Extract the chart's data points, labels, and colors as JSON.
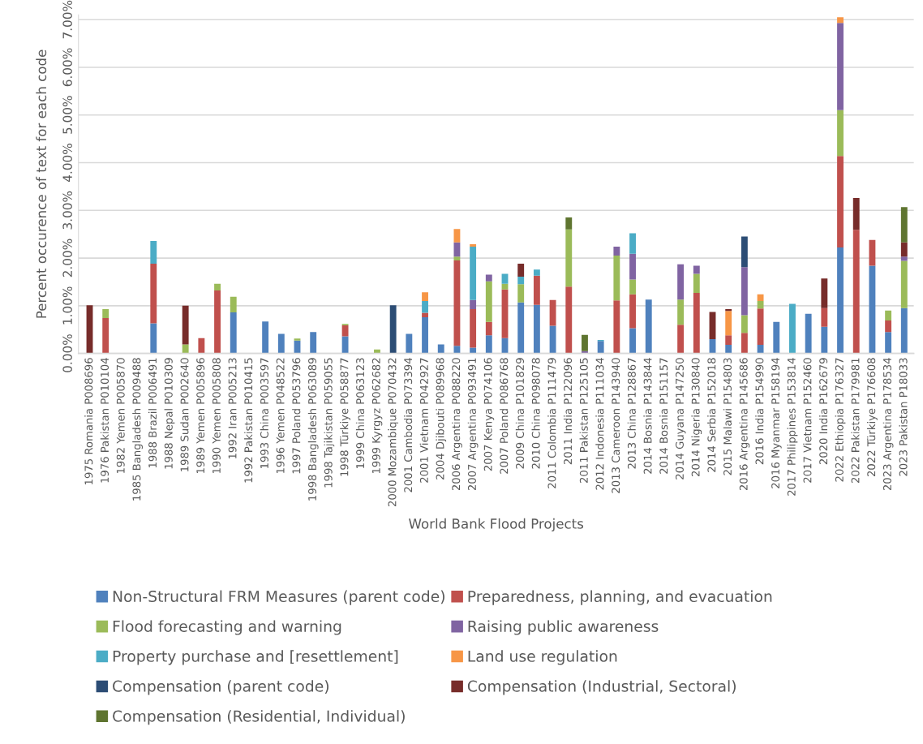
{
  "chart_data": {
    "type": "bar",
    "stacked": true,
    "xlabel": "World Bank Flood Projects",
    "ylabel": "Percent occurence of text for each code",
    "legend": "bottom",
    "grid": "y",
    "ylim": [
      0,
      7.1
    ],
    "yticks": [
      {
        "value": 0,
        "label": "0.00%"
      },
      {
        "value": 1,
        "label": "1.00%"
      },
      {
        "value": 2,
        "label": "2.00%"
      },
      {
        "value": 3,
        "label": "3.00%"
      },
      {
        "value": 4,
        "label": "4.00%"
      },
      {
        "value": 5,
        "label": "5.00%"
      },
      {
        "value": 6,
        "label": "6.00%"
      },
      {
        "value": 7,
        "label": "7.00%"
      }
    ],
    "categories": [
      "1975 Romania P008696",
      "1976 Pakistan P010104",
      "1982 Yemen P005870",
      "1985 Bangladesh P009488",
      "1988 Brazil P006491",
      "1988 Nepal P010309",
      "1989 Sudan P002640",
      "1989 Yemen P005896",
      "1990 Yemen P005808",
      "1992 Iran P005213",
      "1992 Pakistan P010415",
      "1993 China P003597",
      "1996 Yemen P048522",
      "1997 Poland P053796",
      "1998 Bangladesh P063089",
      "1998 Tajikistan P059055",
      "1998 Türkiye P058877",
      "1999 China P063123",
      "1999 Kyrgyz P062682",
      "2000 Mozambique P070432",
      "2001 Cambodia P073394",
      "2001 Vietnam P042927",
      "2004 Djibouti P089968",
      "2006 Argentina P088220",
      "2007 Argentina P093491",
      "2007 Kenya P074106",
      "2007 Poland P086768",
      "2009 China P101829",
      "2010 China P098078",
      "2011 Colombia P111479",
      "2011 India P122096",
      "2011 Pakistan P125105",
      "2012 Indonesia P111034",
      "2013 Cameroon P143940",
      "2013 China P128867",
      "2014 Bosnia P143844",
      "2014 Bosnia P151157",
      "2014 Guyana P147250",
      "2014 Nigeria P130840",
      "2014 Serbia P152018",
      "2015 Malawi P154803",
      "2016 Argentina P145686",
      "2016 India P154990",
      "2016 Myanmar P158194",
      "2017 Philippines P153814",
      "2017 Vietnam P152460",
      "2020 India P162679",
      "2022 Ethiopia P176327",
      "2022 Pakistan P179981",
      "2022 Türkiye P176608",
      "2023 Argentina P178534",
      "2023 Pakistan P18033"
    ],
    "series": [
      {
        "name": "Non-Structural FRM Measures (parent code)",
        "color": "#4f81bd",
        "values": [
          0,
          0,
          0,
          0,
          0.63,
          0,
          0,
          0,
          0,
          0.86,
          0,
          0.67,
          0.41,
          0.27,
          0.45,
          0,
          0.36,
          0,
          0,
          0,
          0.41,
          0.76,
          0.19,
          0.16,
          0.12,
          0.38,
          0.32,
          1.07,
          1.02,
          0.58,
          0,
          0,
          0.26,
          0,
          0.53,
          1.13,
          0,
          0,
          0,
          0.3,
          0.18,
          0,
          0.18,
          0.66,
          0,
          0.83,
          0.56,
          2.22,
          0,
          1.84,
          0.45,
          0.95
        ]
      },
      {
        "name": "Preparedness, planning, and evacuation",
        "color": "#c0504d",
        "values": [
          0,
          0.74,
          0,
          0,
          1.25,
          0,
          0,
          0.32,
          1.32,
          0,
          0,
          0,
          0,
          0,
          0,
          0,
          0.23,
          0,
          0,
          0,
          0,
          0.09,
          0,
          1.79,
          0.81,
          0.28,
          1.02,
          0,
          0.61,
          0.54,
          1.4,
          0,
          0,
          1.11,
          0.71,
          0,
          0,
          0.6,
          1.27,
          0,
          0.2,
          0.43,
          0.76,
          0,
          0,
          0,
          0.39,
          1.92,
          2.59,
          0.54,
          0.24,
          0
        ]
      },
      {
        "name": "Flood forecasting and warning",
        "color": "#9bbb59",
        "values": [
          0,
          0.19,
          0,
          0,
          0,
          0,
          0.19,
          0,
          0.14,
          0.33,
          0,
          0,
          0,
          0.04,
          0,
          0,
          0.03,
          0,
          0.08,
          0,
          0,
          0,
          0,
          0.08,
          0,
          0.85,
          0.12,
          0.38,
          0,
          0,
          1.2,
          0,
          0,
          0.94,
          0.31,
          0,
          0,
          0.53,
          0.4,
          0,
          0,
          0.37,
          0.16,
          0,
          0,
          0,
          0,
          0.96,
          0,
          0,
          0.21,
          0.99
        ]
      },
      {
        "name": "Raising public awareness",
        "color": "#8064a2",
        "values": [
          0,
          0,
          0,
          0,
          0,
          0,
          0,
          0,
          0,
          0,
          0,
          0,
          0,
          0,
          0,
          0,
          0,
          0,
          0,
          0,
          0,
          0,
          0,
          0.3,
          0.19,
          0.14,
          0,
          0,
          0,
          0,
          0,
          0.05,
          0,
          0.19,
          0.54,
          0,
          0,
          0.74,
          0.17,
          0,
          0,
          1.01,
          0,
          0,
          0,
          0,
          0,
          1.83,
          0,
          0,
          0,
          0.09
        ]
      },
      {
        "name": "Property purchase and [resettlement]",
        "color": "#4bacc6",
        "values": [
          0,
          0,
          0,
          0,
          0.48,
          0,
          0,
          0,
          0,
          0,
          0,
          0,
          0,
          0,
          0,
          0,
          0,
          0,
          0,
          0,
          0,
          0.25,
          0,
          0,
          1.12,
          0,
          0.21,
          0.16,
          0.13,
          0,
          0,
          0,
          0.02,
          0,
          0.43,
          0,
          0,
          0,
          0,
          0,
          0,
          0,
          0,
          0,
          1.04,
          0,
          0,
          0,
          0,
          0,
          0,
          0
        ]
      },
      {
        "name": "Land use regulation",
        "color": "#f79646",
        "values": [
          0,
          0,
          0,
          0,
          0,
          0,
          0,
          0,
          0,
          0,
          0,
          0,
          0,
          0,
          0,
          0,
          0,
          0,
          0,
          0,
          0,
          0.18,
          0,
          0.28,
          0.05,
          0,
          0,
          0,
          0,
          0,
          0,
          0,
          0,
          0,
          0,
          0,
          0,
          0,
          0,
          0,
          0.51,
          0,
          0.14,
          0,
          0,
          0,
          0,
          0.12,
          0,
          0,
          0,
          0
        ]
      },
      {
        "name": "Compensation (parent code)",
        "color": "#2c4d75",
        "values": [
          0,
          0,
          0,
          0,
          0,
          0,
          0,
          0,
          0,
          0,
          0,
          0,
          0,
          0,
          0,
          0,
          0,
          0,
          0,
          1.01,
          0,
          0,
          0,
          0,
          0,
          0,
          0,
          0,
          0,
          0,
          0,
          0,
          0,
          0,
          0,
          0,
          0,
          0,
          0,
          0,
          0,
          0.64,
          0,
          0,
          0,
          0,
          0,
          0,
          0,
          0,
          0,
          0
        ]
      },
      {
        "name": "Compensation (Industrial, Sectoral)",
        "color": "#772c2a",
        "values": [
          1.01,
          0,
          0,
          0,
          0,
          0,
          0.81,
          0,
          0,
          0,
          0,
          0,
          0,
          0,
          0,
          0,
          0,
          0,
          0,
          0,
          0,
          0,
          0,
          0,
          0,
          0,
          0,
          0.27,
          0,
          0,
          0,
          0,
          0,
          0,
          0,
          0,
          0,
          0,
          0,
          0.57,
          0.04,
          0,
          0,
          0,
          0,
          0,
          0.62,
          0,
          0.67,
          0,
          0,
          0.3
        ]
      },
      {
        "name": "Compensation (Residential, Individual)",
        "color": "#5f7530",
        "values": [
          0,
          0,
          0,
          0,
          0,
          0,
          0,
          0,
          0,
          0,
          0,
          0,
          0,
          0,
          0,
          0,
          0,
          0,
          0,
          0,
          0,
          0,
          0,
          0,
          0,
          0,
          0,
          0,
          0,
          0,
          0.25,
          0.34,
          0,
          0,
          0,
          0,
          0,
          0,
          0,
          0,
          0,
          0,
          0,
          0,
          0,
          0,
          0,
          0,
          0,
          0,
          0,
          0.74
        ]
      }
    ]
  }
}
